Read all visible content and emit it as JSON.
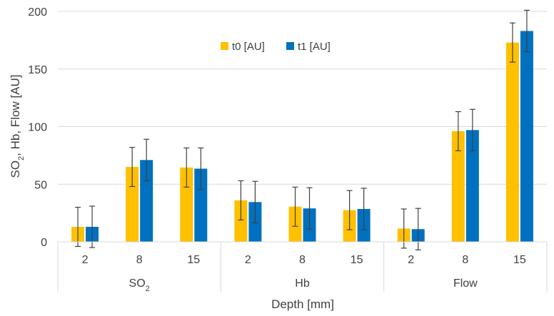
{
  "chart_data": {
    "type": "bar",
    "title": "",
    "xlabel": "Depth [mm]",
    "ylabel": "SO2, Hb, Flow [AU]",
    "ylabel_parts": {
      "pre": "SO",
      "sub": "2",
      "post": ", Hb, Flow [AU]"
    },
    "ylim": [
      0,
      200
    ],
    "yticks": [
      "0",
      "50",
      "100",
      "150",
      "200"
    ],
    "grid": true,
    "legend_position": "top-center",
    "groups": [
      {
        "label": "SO2",
        "label_pre": "SO",
        "label_sub": "2",
        "categories": [
          "2",
          "8",
          "15"
        ]
      },
      {
        "label": "Hb",
        "label_pre": "Hb",
        "label_sub": "",
        "categories": [
          "2",
          "8",
          "15"
        ]
      },
      {
        "label": "Flow",
        "label_pre": "Flow",
        "label_sub": "",
        "categories": [
          "2",
          "8",
          "15"
        ]
      }
    ],
    "series": [
      {
        "name": "t0 [AU]",
        "color": "#FFC000",
        "values": [
          13,
          65,
          64.5,
          36,
          30.5,
          27.5,
          11.5,
          96,
          173
        ],
        "errors": [
          17,
          17,
          17,
          17,
          17,
          17,
          17,
          17,
          17
        ]
      },
      {
        "name": "t1 [AU]",
        "color": "#0070C0",
        "values": [
          13,
          71,
          63.5,
          34.5,
          29,
          28.5,
          11,
          97,
          183
        ],
        "errors": [
          18,
          18,
          18,
          18,
          18,
          18,
          18,
          18,
          18
        ]
      }
    ]
  },
  "colors": {
    "grid": "#d9d9d9",
    "axis_text": "#404040",
    "error_bar": "#404040"
  }
}
